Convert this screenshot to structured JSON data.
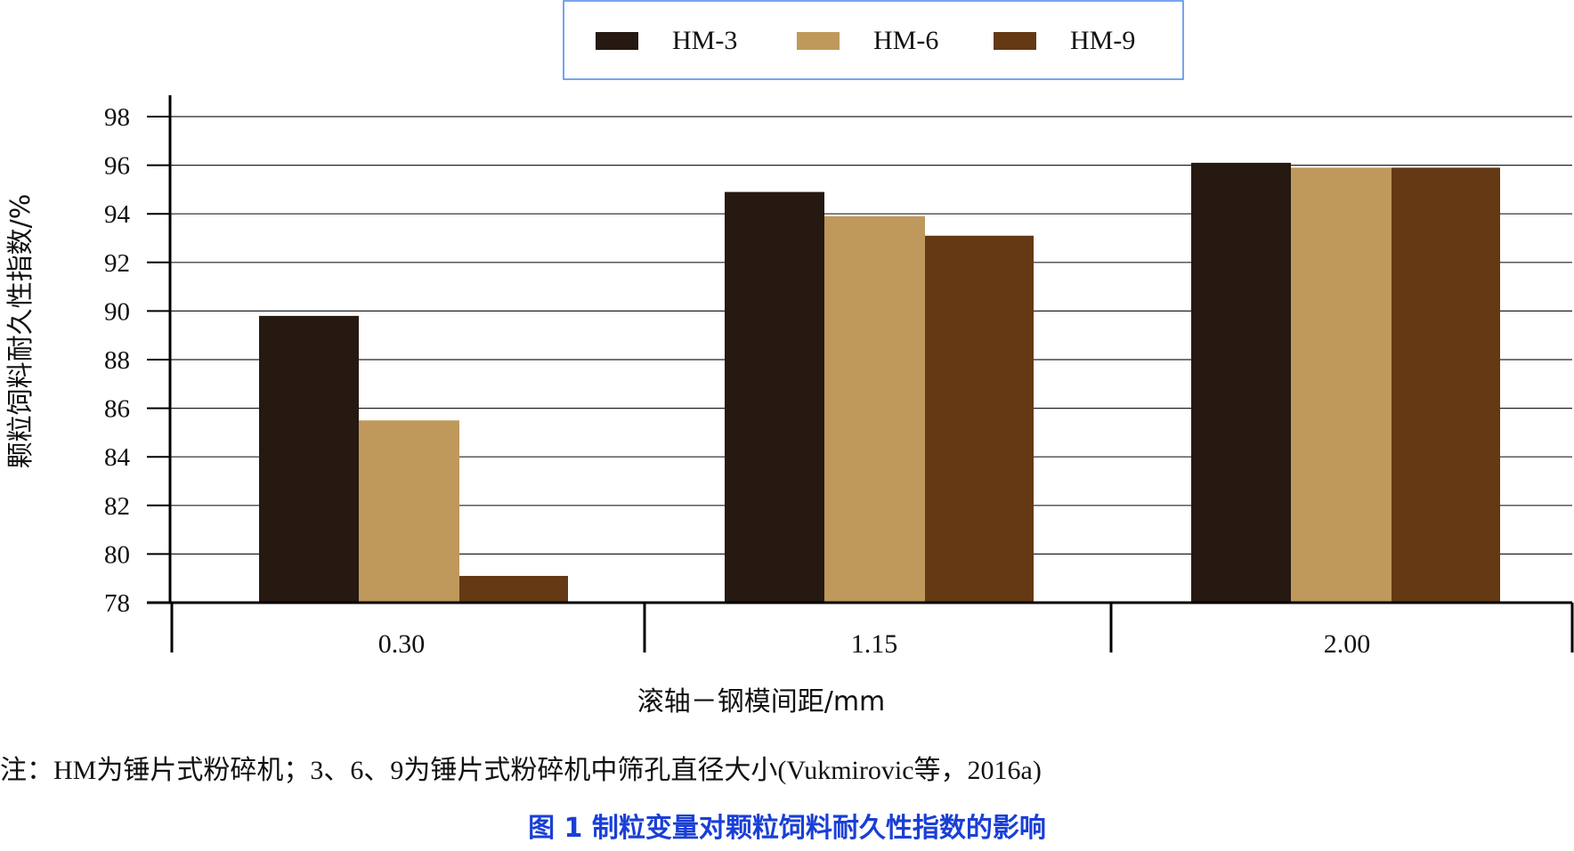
{
  "chart_data": {
    "type": "bar",
    "categories": [
      "0.30",
      "1.15",
      "2.00"
    ],
    "series": [
      {
        "name": "HM-3",
        "color": "#251912",
        "values": [
          89.8,
          94.9,
          96.1
        ]
      },
      {
        "name": "HM-6",
        "color": "#bf995c",
        "values": [
          85.5,
          93.9,
          95.9
        ]
      },
      {
        "name": "HM-9",
        "color": "#643914",
        "values": [
          79.1,
          93.1,
          95.9
        ]
      }
    ],
    "ylim": [
      78,
      98
    ],
    "yticks": [
      78,
      80,
      82,
      84,
      86,
      88,
      90,
      92,
      94,
      96,
      98
    ],
    "ylabel": "颗粒饲料耐久性指数/%",
    "xlabel": "滚轴－钢模间距/mm",
    "grid": true,
    "legend_position": "top-center"
  },
  "note": "注：HM为锤片式粉碎机；3、6、9为锤片式粉碎机中筛孔直径大小(Vukmirovic等，2016a)",
  "caption": "图 1  制粒变量对颗粒饲料耐久性指数的影响",
  "colors": {
    "legend_border": "#4a86e8",
    "axis": "#000000",
    "grid": "#222222",
    "caption": "#1a3fd6"
  }
}
